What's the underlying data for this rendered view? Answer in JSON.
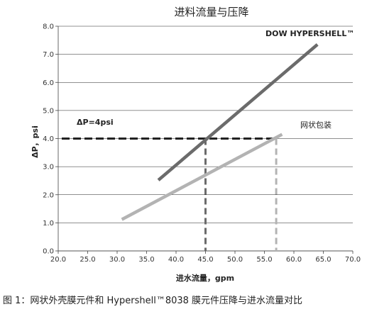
{
  "chart_data": {
    "type": "line",
    "title": "进料流量与压降",
    "xlabel": "进水流量，gpm",
    "ylabel": "ΔP，psi",
    "xlim": [
      20.0,
      70.0
    ],
    "ylim": [
      0.0,
      8.0
    ],
    "xticks": [
      "20.0",
      "25.0",
      "30.0",
      "35.0",
      "40.0",
      "45.0",
      "50.0",
      "55.0",
      "60.0",
      "65.0",
      "70.0"
    ],
    "yticks": [
      "0.0",
      "1.0",
      "2.0",
      "3.0",
      "4.0",
      "5.0",
      "6.0",
      "7.0",
      "8.0"
    ],
    "grid": "horizontal",
    "series": [
      {
        "name": "DOW HYPERSHELL™",
        "color": "#6b6b6b",
        "x": [
          37.0,
          64.0
        ],
        "y": [
          2.52,
          7.35
        ]
      },
      {
        "name": "网状包装",
        "color": "#b3b3b3",
        "x": [
          30.8,
          58.0
        ],
        "y": [
          1.12,
          4.15
        ]
      }
    ],
    "reference": {
      "label": "ΔP=4psi",
      "y": 4.0,
      "color": "#222222",
      "x_markers": [
        {
          "x": 45.0,
          "color": "#6b6b6b"
        },
        {
          "x": 57.0,
          "color": "#b3b3b3"
        }
      ]
    },
    "caption": "图 1：网状外壳膜元件和 Hypershell™8038 膜元件压降与进水流量对比"
  }
}
